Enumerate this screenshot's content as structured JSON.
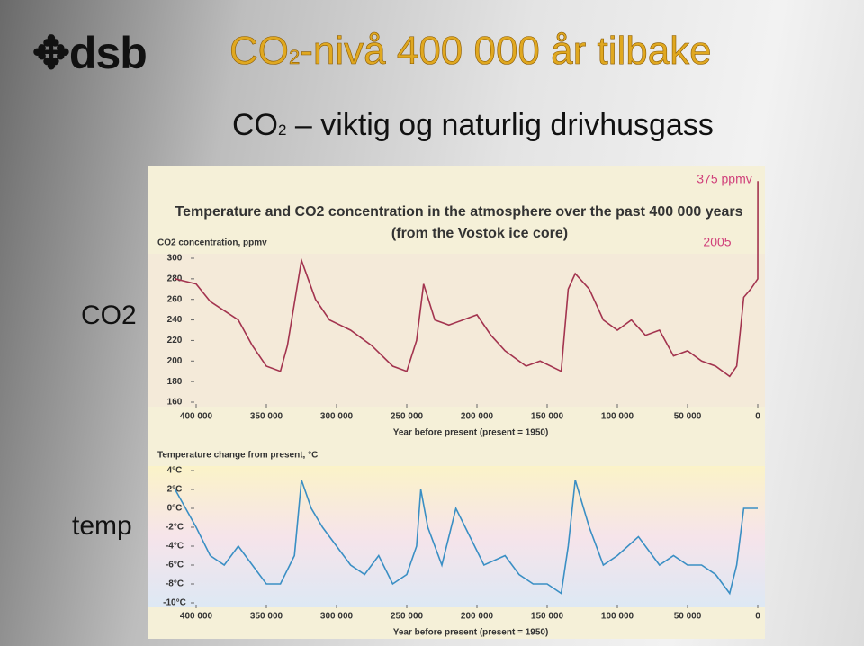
{
  "slide": {
    "logo": "dsb",
    "title": [
      "CO",
      "2",
      "-nivå 400 000 år tilbake"
    ],
    "subtitle": [
      "CO",
      "2",
      " – viktig og naturlig drivhusgass"
    ],
    "side_labels": [
      "CO2",
      "temp"
    ]
  },
  "chart_data": [
    {
      "type": "line",
      "title": "Temperature and CO2 concentration in the atmosphere over the past 400 000 years",
      "subtitle": "(from the Vostok ice core)",
      "y_label": "CO2 concentration, ppmv",
      "x_label": "Year before present (present = 1950)",
      "annotations": [
        "375 ppmv",
        "2005"
      ],
      "x": [
        415000,
        400000,
        390000,
        370000,
        360000,
        350000,
        340000,
        335000,
        325000,
        315000,
        305000,
        290000,
        275000,
        260000,
        250000,
        243000,
        238000,
        230000,
        220000,
        210000,
        200000,
        190000,
        180000,
        165000,
        155000,
        140000,
        135000,
        130000,
        120000,
        110000,
        100000,
        90000,
        80000,
        70000,
        60000,
        50000,
        40000,
        30000,
        20000,
        15000,
        10000,
        5000,
        0,
        -55
      ],
      "series": [
        {
          "name": "CO2",
          "color": "#a3344f",
          "values": [
            280,
            275,
            258,
            240,
            215,
            195,
            190,
            215,
            298,
            260,
            240,
            230,
            215,
            195,
            190,
            220,
            275,
            240,
            235,
            240,
            245,
            225,
            210,
            195,
            200,
            190,
            270,
            285,
            270,
            240,
            230,
            240,
            225,
            230,
            205,
            210,
            200,
            195,
            185,
            195,
            262,
            270,
            280,
            375
          ]
        }
      ],
      "xlim": [
        400000,
        0
      ],
      "xticks": [
        {
          "value": 400000,
          "label": "400 000"
        },
        {
          "value": 350000,
          "label": "350 000"
        },
        {
          "value": 300000,
          "label": "300 000"
        },
        {
          "value": 250000,
          "label": "250 000"
        },
        {
          "value": 200000,
          "label": "200 000"
        },
        {
          "value": 150000,
          "label": "150 000"
        },
        {
          "value": 100000,
          "label": "100 000"
        },
        {
          "value": 50000,
          "label": "50 000"
        },
        0
      ],
      "ylim": [
        160,
        300
      ],
      "yticks": [
        160,
        180,
        200,
        220,
        240,
        260,
        280,
        300
      ]
    },
    {
      "type": "line",
      "y_label": "Temperature change from present, °C",
      "x_label": "Year before present (present = 1950)",
      "x": [
        415000,
        400000,
        390000,
        380000,
        370000,
        360000,
        350000,
        340000,
        330000,
        325000,
        318000,
        310000,
        300000,
        290000,
        280000,
        270000,
        260000,
        250000,
        243000,
        240000,
        235000,
        225000,
        215000,
        205000,
        195000,
        180000,
        170000,
        160000,
        150000,
        140000,
        135000,
        130000,
        120000,
        110000,
        100000,
        85000,
        70000,
        60000,
        50000,
        40000,
        30000,
        20000,
        15000,
        10000,
        0
      ],
      "series": [
        {
          "name": "temp",
          "color": "#3a8fc4",
          "values": [
            2,
            -2,
            -5,
            -6,
            -4,
            -6,
            -8,
            -8,
            -5,
            3,
            0,
            -2,
            -4,
            -6,
            -7,
            -5,
            -8,
            -7,
            -4,
            2,
            -2,
            -6,
            0,
            -3,
            -6,
            -5,
            -7,
            -8,
            -8,
            -9,
            -4,
            3,
            -2,
            -6,
            -5,
            -3,
            -6,
            -5,
            -6,
            -6,
            -7,
            -9,
            -6,
            0,
            0
          ]
        }
      ],
      "xlim": [
        400000,
        0
      ],
      "xticks": [
        {
          "value": 400000,
          "label": "400 000"
        },
        {
          "value": 350000,
          "label": "350 000"
        },
        {
          "value": 300000,
          "label": "300 000"
        },
        {
          "value": 250000,
          "label": "250 000"
        },
        {
          "value": 200000,
          "label": "200 000"
        },
        {
          "value": 150000,
          "label": "150 000"
        },
        {
          "value": 100000,
          "label": "100 000"
        },
        {
          "value": 50000,
          "label": "50 000"
        },
        0
      ],
      "ylim": [
        -10,
        4
      ],
      "yticks": [
        {
          "value": -10,
          "label": "-10°C"
        },
        {
          "value": -8,
          "label": "-8°C"
        },
        {
          "value": -6,
          "label": "-6°C"
        },
        {
          "value": -4,
          "label": "-4°C"
        },
        {
          "value": -2,
          "label": "-2°C"
        },
        {
          "value": 0,
          "label": "0°C"
        },
        {
          "value": 2,
          "label": "2°C"
        },
        {
          "value": 4,
          "label": "4°C"
        }
      ]
    }
  ]
}
